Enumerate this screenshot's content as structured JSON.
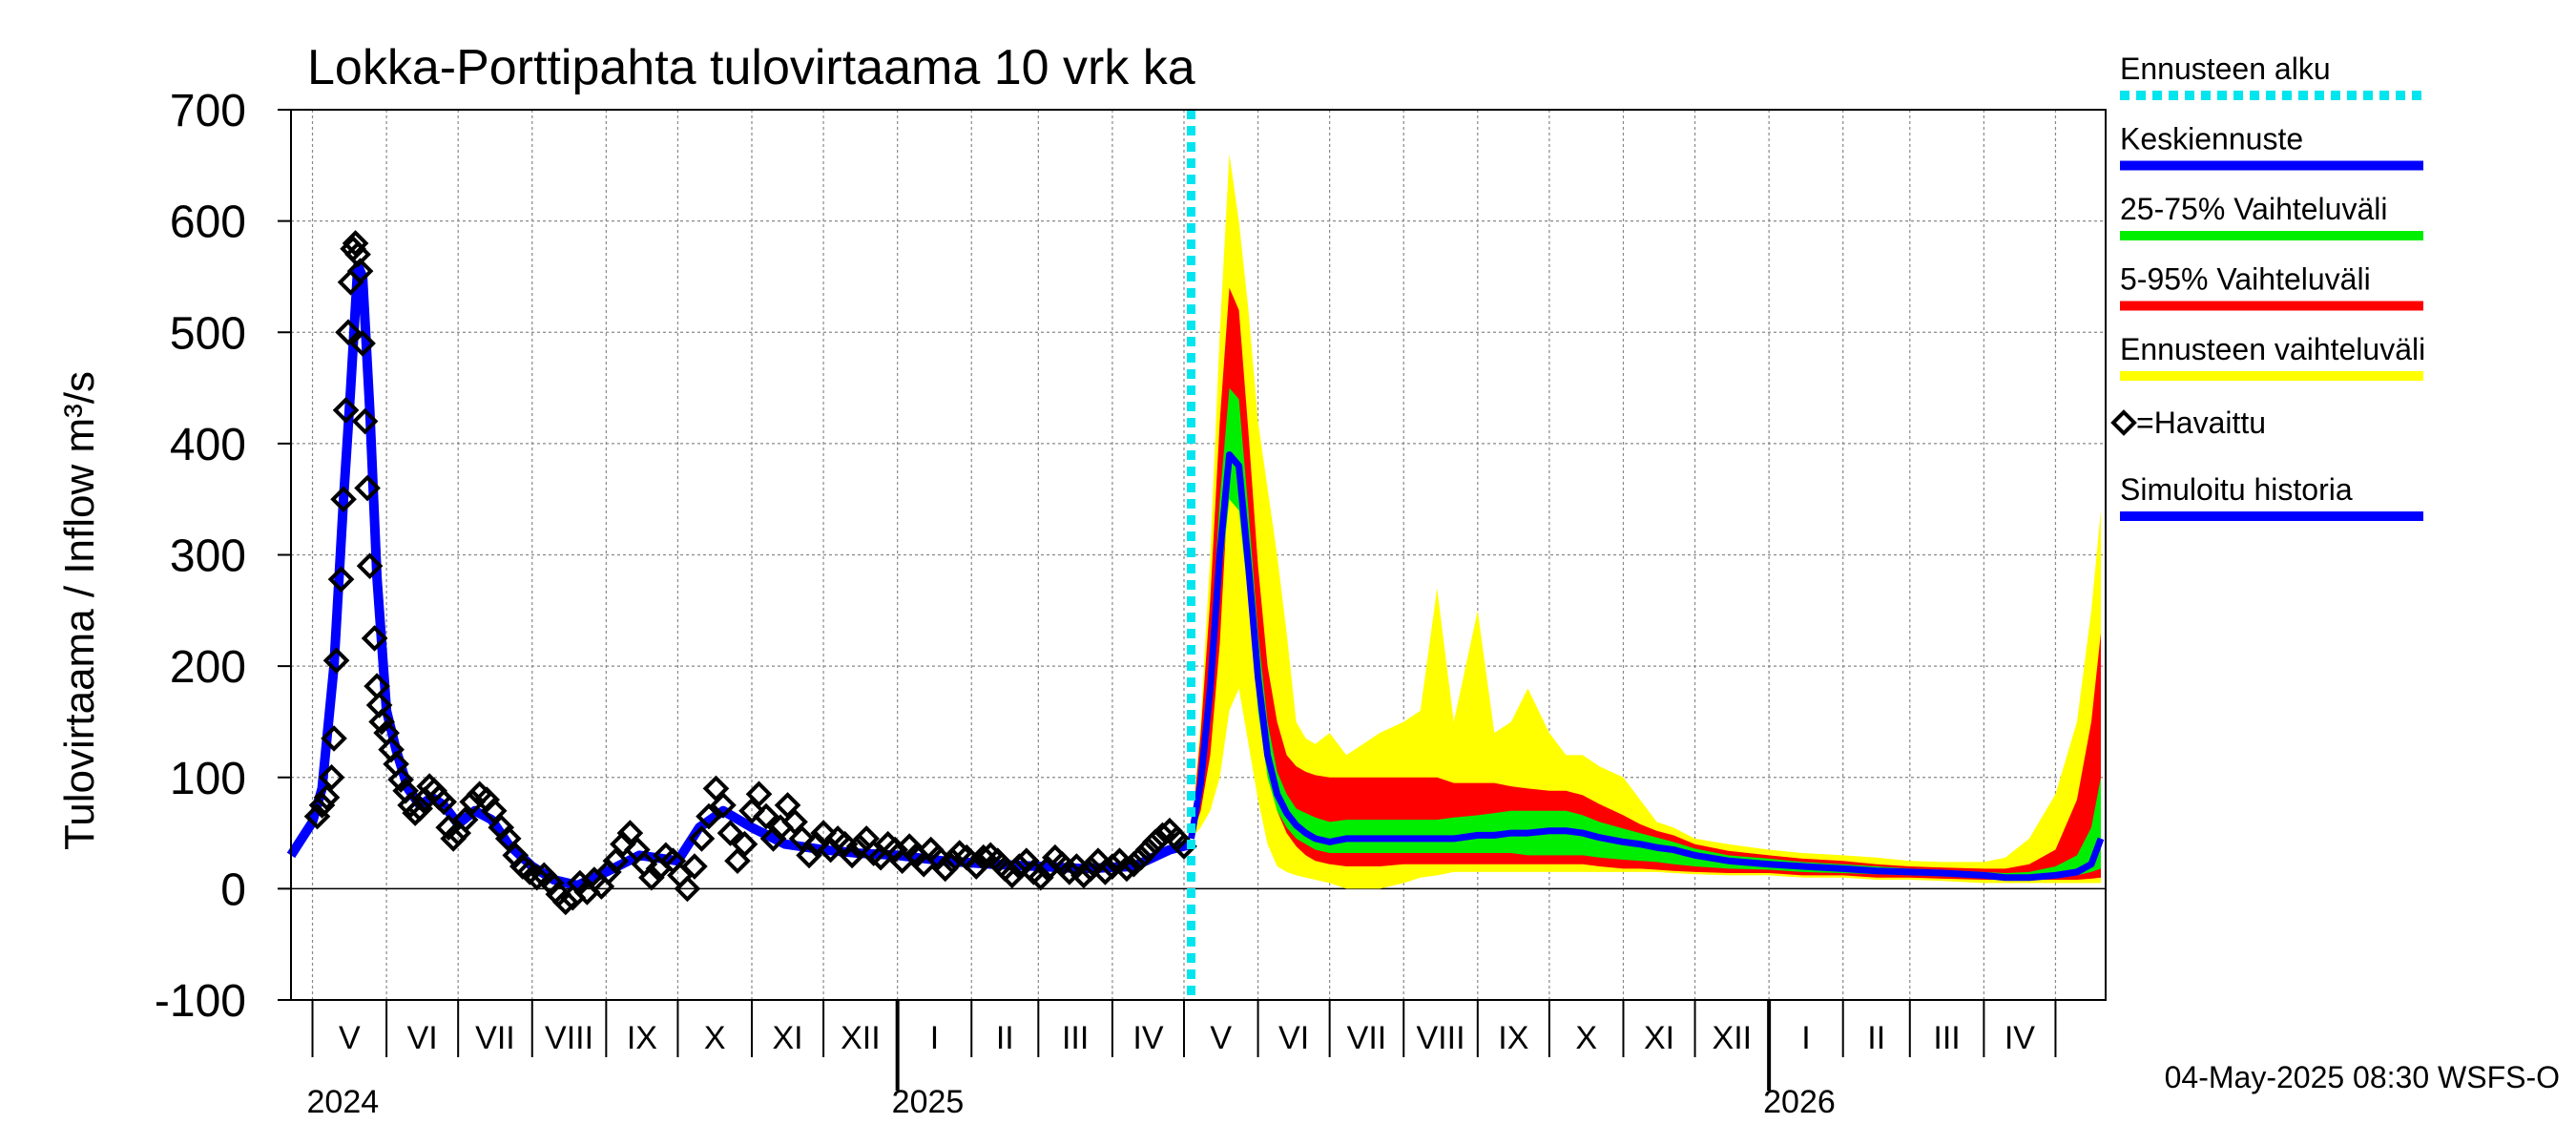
{
  "chart_data": {
    "type": "area",
    "title": "Lokka-Porttipahta tulovirtaama 10 vrk ka",
    "ylabel": "Tulovirtaama / Inflow    m³/s",
    "ylim": [
      -100,
      700
    ],
    "yticks": [
      -100,
      0,
      100,
      200,
      300,
      400,
      500,
      600,
      700
    ],
    "grid": true,
    "legend_position": "right",
    "months": [
      "V",
      "VI",
      "VII",
      "VIII",
      "IX",
      "X",
      "XI",
      "XII",
      "I",
      "II",
      "III",
      "IV",
      "V",
      "VI",
      "VII",
      "VIII",
      "IX",
      "X",
      "XI",
      "XII",
      "I",
      "II",
      "III",
      "IV"
    ],
    "year_labels": [
      {
        "label": "2024",
        "date": "2024-05-01"
      },
      {
        "label": "2025",
        "date": "2025-01-01"
      },
      {
        "label": "2026",
        "date": "2026-01-01"
      }
    ],
    "x_start": "2024-04-22",
    "x_end": "2026-05-22",
    "forecast_start": "2025-05-04",
    "footer": "04-May-2025 08:30 WSFS-O",
    "colors": {
      "forecast_start": "#00e5ee",
      "mean": "#0000ff",
      "p25_75": "#00ee00",
      "p5_95": "#ff0000",
      "range": "#ffff00",
      "observed": "#000000",
      "simulated": "#0000ff"
    },
    "legend": [
      {
        "label": "Ennusteen alku",
        "key": "forecast_start",
        "style": "dotted"
      },
      {
        "label": "Keskiennuste",
        "key": "mean",
        "style": "line"
      },
      {
        "label": "25-75% Vaihteluväli",
        "key": "p25_75",
        "style": "line"
      },
      {
        "label": "5-95% Vaihteluväli",
        "key": "p5_95",
        "style": "line"
      },
      {
        "label": "Ennusteen vaihteluväli",
        "key": "range",
        "style": "line"
      },
      {
        "label": "=Havaittu",
        "key": "observed",
        "style": "marker"
      },
      {
        "label": "Simuloitu historia",
        "key": "simulated",
        "style": "line"
      }
    ],
    "simulated_history": [
      [
        "2024-04-22",
        30
      ],
      [
        "2024-05-01",
        60
      ],
      [
        "2024-05-05",
        90
      ],
      [
        "2024-05-10",
        200
      ],
      [
        "2024-05-14",
        350
      ],
      [
        "2024-05-17",
        450
      ],
      [
        "2024-05-20",
        560
      ],
      [
        "2024-05-22",
        550
      ],
      [
        "2024-05-25",
        430
      ],
      [
        "2024-05-28",
        280
      ],
      [
        "2024-06-01",
        160
      ],
      [
        "2024-06-05",
        125
      ],
      [
        "2024-06-10",
        90
      ],
      [
        "2024-06-15",
        75
      ],
      [
        "2024-06-20",
        82
      ],
      [
        "2024-06-25",
        75
      ],
      [
        "2024-07-01",
        58
      ],
      [
        "2024-07-08",
        70
      ],
      [
        "2024-07-15",
        62
      ],
      [
        "2024-07-22",
        40
      ],
      [
        "2024-08-01",
        20
      ],
      [
        "2024-08-10",
        8
      ],
      [
        "2024-08-20",
        3
      ],
      [
        "2024-09-01",
        15
      ],
      [
        "2024-09-15",
        30
      ],
      [
        "2024-10-01",
        25
      ],
      [
        "2024-10-10",
        55
      ],
      [
        "2024-10-20",
        70
      ],
      [
        "2024-11-01",
        55
      ],
      [
        "2024-11-15",
        40
      ],
      [
        "2024-12-01",
        35
      ],
      [
        "2024-12-15",
        32
      ],
      [
        "2025-01-01",
        30
      ],
      [
        "2025-01-20",
        25
      ],
      [
        "2025-02-10",
        22
      ],
      [
        "2025-03-01",
        20
      ],
      [
        "2025-03-20",
        18
      ],
      [
        "2025-04-10",
        20
      ],
      [
        "2025-04-25",
        35
      ],
      [
        "2025-05-04",
        40
      ]
    ],
    "observed": [
      [
        "2024-05-03",
        65
      ],
      [
        "2024-05-05",
        75
      ],
      [
        "2024-05-07",
        82
      ],
      [
        "2024-05-09",
        100
      ],
      [
        "2024-05-10",
        135
      ],
      [
        "2024-05-11",
        205
      ],
      [
        "2024-05-13",
        278
      ],
      [
        "2024-05-14",
        350
      ],
      [
        "2024-05-15",
        430
      ],
      [
        "2024-05-16",
        500
      ],
      [
        "2024-05-17",
        545
      ],
      [
        "2024-05-18",
        575
      ],
      [
        "2024-05-19",
        580
      ],
      [
        "2024-05-20",
        570
      ],
      [
        "2024-05-21",
        555
      ],
      [
        "2024-05-22",
        490
      ],
      [
        "2024-05-23",
        420
      ],
      [
        "2024-05-24",
        360
      ],
      [
        "2024-05-25",
        290
      ],
      [
        "2024-05-27",
        225
      ],
      [
        "2024-05-28",
        182
      ],
      [
        "2024-05-29",
        165
      ],
      [
        "2024-05-30",
        150
      ],
      [
        "2024-06-01",
        140
      ],
      [
        "2024-06-03",
        125
      ],
      [
        "2024-06-05",
        112
      ],
      [
        "2024-06-07",
        98
      ],
      [
        "2024-06-09",
        88
      ],
      [
        "2024-06-11",
        75
      ],
      [
        "2024-06-13",
        68
      ],
      [
        "2024-06-15",
        72
      ],
      [
        "2024-06-17",
        80
      ],
      [
        "2024-06-19",
        92
      ],
      [
        "2024-06-21",
        88
      ],
      [
        "2024-06-23",
        82
      ],
      [
        "2024-06-25",
        78
      ],
      [
        "2024-06-27",
        55
      ],
      [
        "2024-06-29",
        45
      ],
      [
        "2024-07-01",
        50
      ],
      [
        "2024-07-04",
        62
      ],
      [
        "2024-07-07",
        78
      ],
      [
        "2024-07-10",
        85
      ],
      [
        "2024-07-13",
        80
      ],
      [
        "2024-07-16",
        70
      ],
      [
        "2024-07-19",
        55
      ],
      [
        "2024-07-22",
        45
      ],
      [
        "2024-07-25",
        30
      ],
      [
        "2024-07-28",
        20
      ],
      [
        "2024-07-31",
        15
      ],
      [
        "2024-08-03",
        10
      ],
      [
        "2024-08-06",
        12
      ],
      [
        "2024-08-09",
        5
      ],
      [
        "2024-08-12",
        -5
      ],
      [
        "2024-08-15",
        -12
      ],
      [
        "2024-08-18",
        -8
      ],
      [
        "2024-08-21",
        5
      ],
      [
        "2024-08-24",
        -3
      ],
      [
        "2024-08-27",
        8
      ],
      [
        "2024-08-30",
        2
      ],
      [
        "2024-09-02",
        15
      ],
      [
        "2024-09-05",
        25
      ],
      [
        "2024-09-08",
        40
      ],
      [
        "2024-09-11",
        50
      ],
      [
        "2024-09-14",
        35
      ],
      [
        "2024-09-17",
        22
      ],
      [
        "2024-09-20",
        10
      ],
      [
        "2024-09-23",
        18
      ],
      [
        "2024-09-26",
        30
      ],
      [
        "2024-09-29",
        25
      ],
      [
        "2024-10-02",
        12
      ],
      [
        "2024-10-05",
        0
      ],
      [
        "2024-10-08",
        20
      ],
      [
        "2024-10-11",
        45
      ],
      [
        "2024-10-14",
        65
      ],
      [
        "2024-10-17",
        90
      ],
      [
        "2024-10-20",
        75
      ],
      [
        "2024-10-23",
        50
      ],
      [
        "2024-10-26",
        25
      ],
      [
        "2024-10-29",
        40
      ],
      [
        "2024-11-01",
        70
      ],
      [
        "2024-11-04",
        85
      ],
      [
        "2024-11-07",
        65
      ],
      [
        "2024-11-10",
        45
      ],
      [
        "2024-11-13",
        55
      ],
      [
        "2024-11-16",
        75
      ],
      [
        "2024-11-19",
        60
      ],
      [
        "2024-11-22",
        45
      ],
      [
        "2024-11-25",
        30
      ],
      [
        "2024-11-28",
        40
      ],
      [
        "2024-12-01",
        50
      ],
      [
        "2024-12-04",
        35
      ],
      [
        "2024-12-07",
        45
      ],
      [
        "2024-12-10",
        40
      ],
      [
        "2024-12-13",
        30
      ],
      [
        "2024-12-16",
        38
      ],
      [
        "2024-12-19",
        45
      ],
      [
        "2024-12-22",
        32
      ],
      [
        "2024-12-25",
        28
      ],
      [
        "2024-12-28",
        40
      ],
      [
        "2024-12-31",
        35
      ],
      [
        "2025-01-03",
        25
      ],
      [
        "2025-01-06",
        38
      ],
      [
        "2025-01-09",
        30
      ],
      [
        "2025-01-12",
        22
      ],
      [
        "2025-01-15",
        35
      ],
      [
        "2025-01-18",
        28
      ],
      [
        "2025-01-21",
        18
      ],
      [
        "2025-01-24",
        25
      ],
      [
        "2025-01-27",
        32
      ],
      [
        "2025-01-30",
        28
      ],
      [
        "2025-02-03",
        20
      ],
      [
        "2025-02-06",
        28
      ],
      [
        "2025-02-09",
        30
      ],
      [
        "2025-02-12",
        25
      ],
      [
        "2025-02-15",
        18
      ],
      [
        "2025-02-18",
        12
      ],
      [
        "2025-02-21",
        20
      ],
      [
        "2025-02-24",
        25
      ],
      [
        "2025-02-27",
        15
      ],
      [
        "2025-03-02",
        10
      ],
      [
        "2025-03-05",
        18
      ],
      [
        "2025-03-08",
        28
      ],
      [
        "2025-03-11",
        22
      ],
      [
        "2025-03-14",
        15
      ],
      [
        "2025-03-17",
        20
      ],
      [
        "2025-03-20",
        12
      ],
      [
        "2025-03-23",
        18
      ],
      [
        "2025-03-26",
        25
      ],
      [
        "2025-03-29",
        15
      ],
      [
        "2025-04-01",
        20
      ],
      [
        "2025-04-04",
        25
      ],
      [
        "2025-04-07",
        18
      ],
      [
        "2025-04-10",
        22
      ],
      [
        "2025-04-13",
        28
      ],
      [
        "2025-04-16",
        35
      ],
      [
        "2025-04-19",
        42
      ],
      [
        "2025-04-22",
        48
      ],
      [
        "2025-04-25",
        52
      ],
      [
        "2025-04-28",
        45
      ],
      [
        "2025-05-01",
        38
      ]
    ],
    "forecast": {
      "dates": [
        "2025-05-04",
        "2025-05-08",
        "2025-05-12",
        "2025-05-16",
        "2025-05-20",
        "2025-05-24",
        "2025-05-28",
        "2025-06-01",
        "2025-06-05",
        "2025-06-09",
        "2025-06-13",
        "2025-06-17",
        "2025-06-21",
        "2025-06-25",
        "2025-07-01",
        "2025-07-08",
        "2025-07-15",
        "2025-07-22",
        "2025-08-01",
        "2025-08-08",
        "2025-08-15",
        "2025-08-22",
        "2025-09-01",
        "2025-09-08",
        "2025-09-15",
        "2025-09-22",
        "2025-10-01",
        "2025-10-08",
        "2025-10-15",
        "2025-10-22",
        "2025-11-01",
        "2025-11-08",
        "2025-11-15",
        "2025-11-22",
        "2025-12-01",
        "2025-12-15",
        "2026-01-01",
        "2026-01-15",
        "2026-02-01",
        "2026-02-15",
        "2026-03-01",
        "2026-03-15",
        "2026-04-01",
        "2026-04-10",
        "2026-04-20",
        "2026-05-01",
        "2026-05-10",
        "2026-05-16",
        "2026-05-20"
      ],
      "min": [
        45,
        55,
        70,
        100,
        160,
        180,
        130,
        80,
        40,
        20,
        15,
        12,
        10,
        8,
        5,
        0,
        0,
        0,
        5,
        10,
        12,
        15,
        15,
        15,
        15,
        15,
        15,
        15,
        15,
        15,
        15,
        15,
        15,
        14,
        13,
        12,
        12,
        10,
        10,
        8,
        8,
        7,
        5,
        5,
        5,
        5,
        5,
        5,
        5
      ],
      "p5": [
        45,
        70,
        120,
        220,
        380,
        400,
        300,
        180,
        110,
        70,
        50,
        38,
        30,
        25,
        22,
        20,
        20,
        20,
        22,
        22,
        22,
        22,
        22,
        22,
        22,
        22,
        22,
        22,
        22,
        20,
        18,
        18,
        17,
        16,
        15,
        14,
        14,
        12,
        12,
        10,
        10,
        9,
        8,
        8,
        8,
        8,
        8,
        9,
        10
      ],
      "p25": [
        45,
        80,
        150,
        270,
        350,
        340,
        260,
        160,
        100,
        70,
        55,
        45,
        40,
        35,
        32,
        32,
        32,
        32,
        32,
        32,
        32,
        32,
        32,
        32,
        32,
        30,
        30,
        30,
        30,
        28,
        26,
        25,
        24,
        22,
        20,
        18,
        17,
        15,
        14,
        13,
        12,
        11,
        10,
        10,
        10,
        10,
        12,
        15,
        18
      ],
      "mean": [
        45,
        95,
        180,
        300,
        390,
        380,
        290,
        190,
        120,
        85,
        68,
        57,
        50,
        45,
        42,
        45,
        45,
        45,
        45,
        45,
        45,
        45,
        48,
        48,
        50,
        50,
        52,
        52,
        50,
        46,
        42,
        40,
        37,
        35,
        30,
        25,
        22,
        20,
        18,
        16,
        15,
        14,
        12,
        10,
        10,
        12,
        15,
        22,
        45
      ],
      "p75": [
        45,
        115,
        210,
        350,
        450,
        440,
        340,
        230,
        150,
        105,
        85,
        72,
        68,
        64,
        60,
        62,
        62,
        62,
        62,
        62,
        62,
        64,
        66,
        68,
        70,
        70,
        70,
        70,
        66,
        60,
        54,
        50,
        46,
        42,
        36,
        30,
        27,
        24,
        22,
        20,
        18,
        17,
        15,
        14,
        15,
        20,
        30,
        55,
        100
      ],
      "p95": [
        45,
        140,
        260,
        420,
        540,
        520,
        410,
        290,
        200,
        150,
        120,
        110,
        105,
        102,
        100,
        100,
        100,
        100,
        100,
        100,
        100,
        95,
        95,
        95,
        92,
        90,
        88,
        88,
        84,
        76,
        66,
        58,
        52,
        48,
        40,
        34,
        30,
        27,
        25,
        22,
        20,
        19,
        18,
        18,
        22,
        35,
        80,
        150,
        230
      ],
      "max": [
        45,
        150,
        300,
        500,
        660,
        600,
        520,
        420,
        360,
        300,
        230,
        150,
        135,
        130,
        140,
        120,
        130,
        140,
        150,
        160,
        270,
        150,
        250,
        140,
        150,
        180,
        140,
        120,
        120,
        110,
        100,
        80,
        60,
        55,
        45,
        40,
        35,
        32,
        30,
        28,
        25,
        24,
        24,
        28,
        45,
        85,
        150,
        250,
        340
      ]
    }
  }
}
